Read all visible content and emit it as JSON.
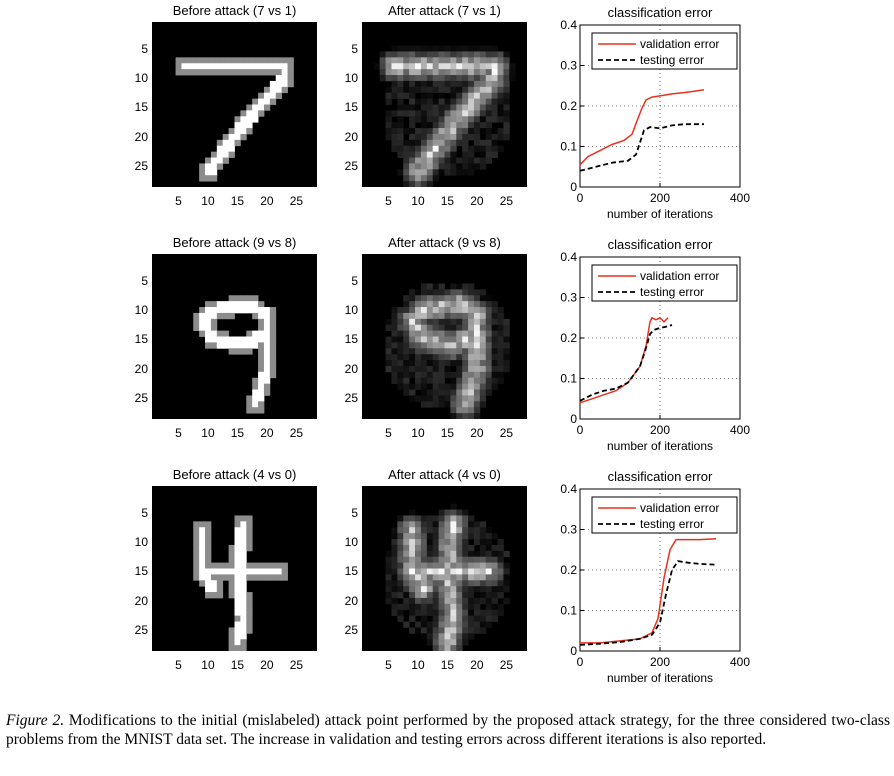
{
  "rows": [
    {
      "before_title": "Before attack (7 vs 1)",
      "after_title": "After attack (7 vs 1)",
      "chart_title": "classification error",
      "digit": "7"
    },
    {
      "before_title": "Before attack (9 vs 8)",
      "after_title": "After attack (9 vs 8)",
      "chart_title": "classification error",
      "digit": "9"
    },
    {
      "before_title": "Before attack (4 vs 0)",
      "after_title": "After attack (4 vs 0)",
      "chart_title": "classification error",
      "digit": "4"
    }
  ],
  "image_axes": {
    "y_ticks": [
      "5",
      "10",
      "15",
      "20",
      "25"
    ],
    "x_ticks": [
      "5",
      "10",
      "15",
      "20",
      "25"
    ]
  },
  "chart_data": [
    {
      "type": "line",
      "title": "classification error",
      "xlabel": "number of iterations",
      "ylabel": "",
      "xlim": [
        0,
        400
      ],
      "ylim": [
        0,
        0.4
      ],
      "xticks": [
        "0",
        "200",
        "400"
      ],
      "yticks": [
        "0",
        "0.1",
        "0.2",
        "0.3",
        "0.4"
      ],
      "grid": "dotted",
      "legend_position": "top-right",
      "series": [
        {
          "name": "validation error",
          "color": "#e8321e",
          "style": "solid",
          "x": [
            0,
            20,
            50,
            80,
            110,
            130,
            145,
            155,
            165,
            180,
            200,
            230,
            260,
            290,
            310
          ],
          "y": [
            0.055,
            0.075,
            0.09,
            0.105,
            0.115,
            0.13,
            0.17,
            0.195,
            0.215,
            0.222,
            0.225,
            0.23,
            0.233,
            0.237,
            0.24
          ]
        },
        {
          "name": "testing error",
          "color": "#000000",
          "style": "dashed",
          "x": [
            0,
            40,
            80,
            120,
            140,
            160,
            175,
            200,
            230,
            260,
            290,
            310
          ],
          "y": [
            0.04,
            0.05,
            0.06,
            0.065,
            0.08,
            0.14,
            0.148,
            0.145,
            0.152,
            0.155,
            0.155,
            0.155
          ]
        }
      ]
    },
    {
      "type": "line",
      "title": "classification error",
      "xlabel": "number of iterations",
      "ylabel": "",
      "xlim": [
        0,
        400
      ],
      "ylim": [
        0,
        0.4
      ],
      "xticks": [
        "0",
        "200",
        "400"
      ],
      "yticks": [
        "0",
        "0.1",
        "0.2",
        "0.3",
        "0.4"
      ],
      "grid": "dotted",
      "legend_position": "top-right",
      "series": [
        {
          "name": "validation error",
          "color": "#e8321e",
          "style": "solid",
          "x": [
            0,
            30,
            60,
            90,
            120,
            150,
            165,
            175,
            180,
            190,
            200,
            210,
            220
          ],
          "y": [
            0.04,
            0.05,
            0.06,
            0.07,
            0.09,
            0.13,
            0.18,
            0.24,
            0.25,
            0.245,
            0.25,
            0.24,
            0.25
          ]
        },
        {
          "name": "testing error",
          "color": "#000000",
          "style": "dashed",
          "x": [
            0,
            30,
            60,
            90,
            120,
            150,
            165,
            175,
            185,
            200,
            215,
            230
          ],
          "y": [
            0.045,
            0.06,
            0.07,
            0.075,
            0.09,
            0.13,
            0.175,
            0.21,
            0.22,
            0.225,
            0.228,
            0.232
          ]
        }
      ]
    },
    {
      "type": "line",
      "title": "classification error",
      "xlabel": "number of iterations",
      "ylabel": "",
      "xlim": [
        0,
        400
      ],
      "ylim": [
        0,
        0.4
      ],
      "xticks": [
        "0",
        "200",
        "400"
      ],
      "yticks": [
        "0",
        "0.1",
        "0.2",
        "0.3",
        "0.4"
      ],
      "grid": "dotted",
      "legend_position": "top-right",
      "series": [
        {
          "name": "validation error",
          "color": "#e8321e",
          "style": "solid",
          "x": [
            0,
            50,
            100,
            150,
            180,
            195,
            210,
            225,
            240,
            260,
            300,
            340
          ],
          "y": [
            0.02,
            0.02,
            0.025,
            0.03,
            0.045,
            0.08,
            0.18,
            0.25,
            0.275,
            0.275,
            0.275,
            0.277
          ]
        },
        {
          "name": "testing error",
          "color": "#000000",
          "style": "dashed",
          "x": [
            0,
            50,
            100,
            150,
            180,
            200,
            215,
            230,
            245,
            270,
            300,
            340
          ],
          "y": [
            0.015,
            0.018,
            0.022,
            0.03,
            0.04,
            0.07,
            0.14,
            0.2,
            0.222,
            0.218,
            0.215,
            0.213
          ]
        }
      ]
    }
  ],
  "caption": {
    "label": "Figure 2.",
    "text": " Modifications to the initial (mislabeled) attack point performed by the proposed attack strategy, for the three considered two-class problems from the MNIST data set.  The increase in validation and testing errors across different iterations is also reported."
  }
}
